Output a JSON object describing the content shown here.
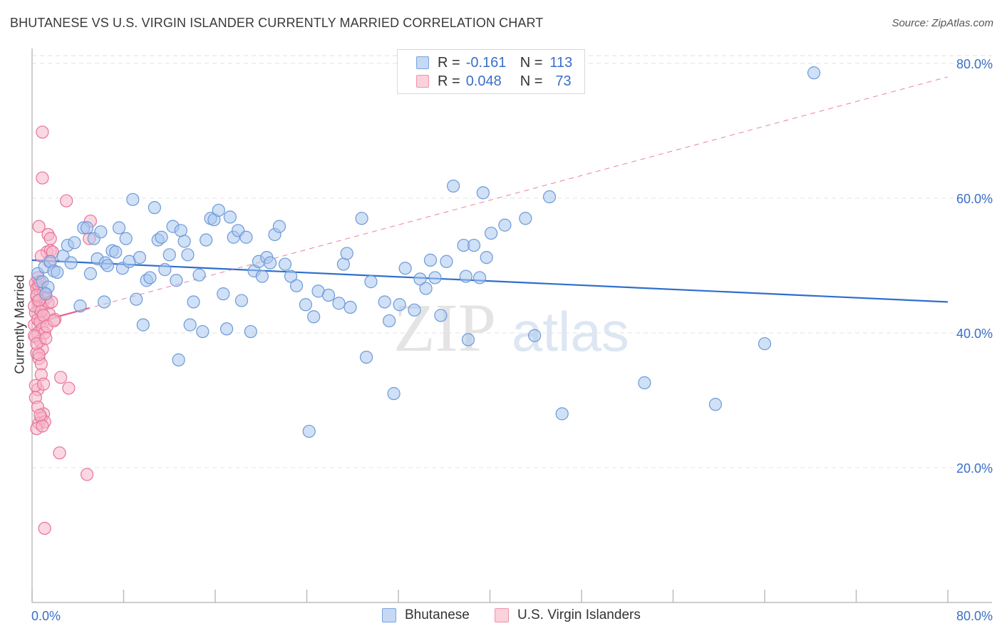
{
  "header": {
    "title": "BHUTANESE VS U.S. VIRGIN ISLANDER CURRENTLY MARRIED CORRELATION CHART",
    "source": "Source: ZipAtlas.com"
  },
  "legend": {
    "rows": [
      {
        "r_label": "R =",
        "r_value": "-0.161",
        "n_label": "N =",
        "n_value": "113"
      },
      {
        "r_label": "R =",
        "r_value": "0.048",
        "n_label": "N =",
        "n_value": "73"
      }
    ]
  },
  "bottom_legend": {
    "series1": "Bhutanese",
    "series2": "U.S. Virgin Islanders"
  },
  "watermark": {
    "part1": "ZIP",
    "part2": "atlas"
  },
  "colors": {
    "blue_fill": "#a9c7ef",
    "blue_stroke": "#6b9ad8",
    "blue_line": "#2f6fcc",
    "pink_fill": "#f6b7c9",
    "pink_stroke": "#e8739a",
    "pink_line": "#e8608a",
    "axis_text": "#3a6fc9",
    "grid": "#e3e3e3"
  },
  "chart_data": {
    "type": "scatter",
    "title": "BHUTANESE VS U.S. VIRGIN ISLANDER CURRENTLY MARRIED CORRELATION CHART",
    "xlabel": "",
    "ylabel": "Currently Married",
    "xlim": [
      0,
      80
    ],
    "ylim": [
      0,
      82
    ],
    "x_tick_labels": [
      "0.0%",
      "80.0%"
    ],
    "y_ticks": [
      20,
      40,
      60,
      80
    ],
    "y_tick_labels": [
      "20.0%",
      "40.0%",
      "60.0%",
      "80.0%"
    ],
    "grid": true,
    "legend_position": "top-center",
    "series": [
      {
        "name": "Bhutanese",
        "r": -0.161,
        "n": 113,
        "trend": {
          "x0": 0,
          "y0": 50.8,
          "x1": 80,
          "y1": 44.6
        },
        "points": [
          [
            0.5,
            48.8
          ],
          [
            0.9,
            47.6
          ],
          [
            1.1,
            49.8
          ],
          [
            1.4,
            46.8
          ],
          [
            1.6,
            50.6
          ],
          [
            1.9,
            49.2
          ],
          [
            2.2,
            49.0
          ],
          [
            2.7,
            51.4
          ],
          [
            3.1,
            53.0
          ],
          [
            3.4,
            50.4
          ],
          [
            3.7,
            53.4
          ],
          [
            4.2,
            44.0
          ],
          [
            4.5,
            55.6
          ],
          [
            4.8,
            55.6
          ],
          [
            5.1,
            48.8
          ],
          [
            5.4,
            54.0
          ],
          [
            5.7,
            51.0
          ],
          [
            6.0,
            55.0
          ],
          [
            6.4,
            50.4
          ],
          [
            6.6,
            50.0
          ],
          [
            7.0,
            52.2
          ],
          [
            7.3,
            52.0
          ],
          [
            7.6,
            55.6
          ],
          [
            7.9,
            49.6
          ],
          [
            8.2,
            54.0
          ],
          [
            8.5,
            50.6
          ],
          [
            8.8,
            59.8
          ],
          [
            9.1,
            45.0
          ],
          [
            9.4,
            51.2
          ],
          [
            9.7,
            41.2
          ],
          [
            10.0,
            47.8
          ],
          [
            10.3,
            48.2
          ],
          [
            10.7,
            58.6
          ],
          [
            11.0,
            53.8
          ],
          [
            11.3,
            54.2
          ],
          [
            11.6,
            49.4
          ],
          [
            12.0,
            51.6
          ],
          [
            12.3,
            55.8
          ],
          [
            12.6,
            47.8
          ],
          [
            13.0,
            55.2
          ],
          [
            13.3,
            53.6
          ],
          [
            13.6,
            51.6
          ],
          [
            13.8,
            41.2
          ],
          [
            14.1,
            44.6
          ],
          [
            14.6,
            48.6
          ],
          [
            14.9,
            40.2
          ],
          [
            15.2,
            53.8
          ],
          [
            15.6,
            57.0
          ],
          [
            15.9,
            56.8
          ],
          [
            16.3,
            58.2
          ],
          [
            16.7,
            45.8
          ],
          [
            17.0,
            40.6
          ],
          [
            17.3,
            57.2
          ],
          [
            17.6,
            54.2
          ],
          [
            18.0,
            55.2
          ],
          [
            18.3,
            44.8
          ],
          [
            18.7,
            54.2
          ],
          [
            19.1,
            40.2
          ],
          [
            19.4,
            49.2
          ],
          [
            19.8,
            50.6
          ],
          [
            20.1,
            48.4
          ],
          [
            20.5,
            51.2
          ],
          [
            20.8,
            50.4
          ],
          [
            21.2,
            54.6
          ],
          [
            21.6,
            55.8
          ],
          [
            22.1,
            50.2
          ],
          [
            22.6,
            48.4
          ],
          [
            23.1,
            47.0
          ],
          [
            23.9,
            44.2
          ],
          [
            24.2,
            25.4
          ],
          [
            24.6,
            42.4
          ],
          [
            25.0,
            46.2
          ],
          [
            25.9,
            45.6
          ],
          [
            26.8,
            44.4
          ],
          [
            27.2,
            50.2
          ],
          [
            27.5,
            51.8
          ],
          [
            27.8,
            43.8
          ],
          [
            28.8,
            57.0
          ],
          [
            29.2,
            36.4
          ],
          [
            29.6,
            47.6
          ],
          [
            30.8,
            44.6
          ],
          [
            31.2,
            41.8
          ],
          [
            31.6,
            31.0
          ],
          [
            32.1,
            44.2
          ],
          [
            32.6,
            49.6
          ],
          [
            33.4,
            43.4
          ],
          [
            33.9,
            48.0
          ],
          [
            34.4,
            46.6
          ],
          [
            34.8,
            50.8
          ],
          [
            35.2,
            48.2
          ],
          [
            35.7,
            42.6
          ],
          [
            36.2,
            50.6
          ],
          [
            36.8,
            61.8
          ],
          [
            37.7,
            53.0
          ],
          [
            38.1,
            39.0
          ],
          [
            37.9,
            48.4
          ],
          [
            38.6,
            53.0
          ],
          [
            39.1,
            48.2
          ],
          [
            39.4,
            60.8
          ],
          [
            39.7,
            51.2
          ],
          [
            40.1,
            54.8
          ],
          [
            41.3,
            56.0
          ],
          [
            43.1,
            57.0
          ],
          [
            43.9,
            39.6
          ],
          [
            45.2,
            60.2
          ],
          [
            46.3,
            28.0
          ],
          [
            53.5,
            32.6
          ],
          [
            59.7,
            29.4
          ],
          [
            64.0,
            38.4
          ],
          [
            68.3,
            78.6
          ],
          [
            12.8,
            36.0
          ],
          [
            6.3,
            44.6
          ],
          [
            1.2,
            45.8
          ]
        ]
      },
      {
        "name": "U.S. Virgin Islanders",
        "r": 0.048,
        "n": 73,
        "trend": {
          "x0": 0,
          "y0": 41.4,
          "x1": 80,
          "y1": 78.0
        },
        "trend_solid_until_x": 5.0,
        "points": [
          [
            0.3,
            47.4
          ],
          [
            0.5,
            44.8
          ],
          [
            0.7,
            46.2
          ],
          [
            0.4,
            45.4
          ],
          [
            0.9,
            44.4
          ],
          [
            1.1,
            45.8
          ],
          [
            0.6,
            43.6
          ],
          [
            0.8,
            42.4
          ],
          [
            0.2,
            41.2
          ],
          [
            0.5,
            40.0
          ],
          [
            0.3,
            39.4
          ],
          [
            0.7,
            38.8
          ],
          [
            0.9,
            37.6
          ],
          [
            0.4,
            37.0
          ],
          [
            0.6,
            36.2
          ],
          [
            0.8,
            35.4
          ],
          [
            0.5,
            31.6
          ],
          [
            0.3,
            32.2
          ],
          [
            1.0,
            28.0
          ],
          [
            0.8,
            27.4
          ],
          [
            0.6,
            26.6
          ],
          [
            1.1,
            26.8
          ],
          [
            0.4,
            25.8
          ],
          [
            0.9,
            26.2
          ],
          [
            1.3,
            52.0
          ],
          [
            1.6,
            52.2
          ],
          [
            1.5,
            50.6
          ],
          [
            1.4,
            54.6
          ],
          [
            1.6,
            54.0
          ],
          [
            1.8,
            52.0
          ],
          [
            0.6,
            55.8
          ],
          [
            0.8,
            51.4
          ],
          [
            0.9,
            69.8
          ],
          [
            0.9,
            63.0
          ],
          [
            3.0,
            59.6
          ],
          [
            5.1,
            56.6
          ],
          [
            5.0,
            54.0
          ],
          [
            3.2,
            31.8
          ],
          [
            2.5,
            33.4
          ],
          [
            2.4,
            22.2
          ],
          [
            4.8,
            19.0
          ],
          [
            1.1,
            11.0
          ],
          [
            0.4,
            46.6
          ],
          [
            0.6,
            47.0
          ],
          [
            1.0,
            46.0
          ],
          [
            1.2,
            45.2
          ],
          [
            1.4,
            44.4
          ],
          [
            0.3,
            43.0
          ],
          [
            0.5,
            42.0
          ],
          [
            0.7,
            41.6
          ],
          [
            0.9,
            40.6
          ],
          [
            1.1,
            40.0
          ],
          [
            0.2,
            39.6
          ],
          [
            0.4,
            38.4
          ],
          [
            0.6,
            36.8
          ],
          [
            0.8,
            33.8
          ],
          [
            1.0,
            32.4
          ],
          [
            0.3,
            30.4
          ],
          [
            0.5,
            29.0
          ],
          [
            0.7,
            27.8
          ],
          [
            1.2,
            39.2
          ],
          [
            1.5,
            42.8
          ],
          [
            2.0,
            42.0
          ],
          [
            1.7,
            44.6
          ],
          [
            0.2,
            44.0
          ],
          [
            0.4,
            45.6
          ],
          [
            0.6,
            44.8
          ],
          [
            0.8,
            43.2
          ],
          [
            1.0,
            42.6
          ],
          [
            1.3,
            41.0
          ],
          [
            0.5,
            48.2
          ],
          [
            0.7,
            47.6
          ],
          [
            1.9,
            41.8
          ]
        ]
      }
    ]
  }
}
